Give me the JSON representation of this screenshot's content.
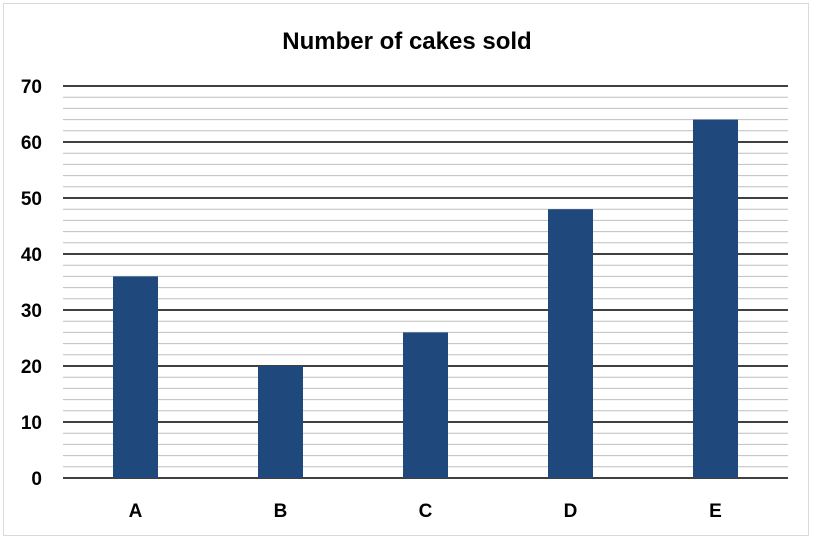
{
  "chart_data": {
    "type": "bar",
    "title": "Number of cakes sold",
    "categories": [
      "A",
      "B",
      "C",
      "D",
      "E"
    ],
    "values": [
      36,
      20,
      26,
      48,
      64
    ],
    "ylim": [
      0,
      70
    ],
    "yticks": [
      0,
      10,
      20,
      30,
      40,
      50,
      60,
      70
    ],
    "major_grid_step": 10,
    "minor_grid_step": 2,
    "grid": true,
    "legend": "none",
    "bar_color": "#1f497d",
    "major_grid_color": "#000000",
    "minor_grid_color": "#bfbfbf"
  }
}
